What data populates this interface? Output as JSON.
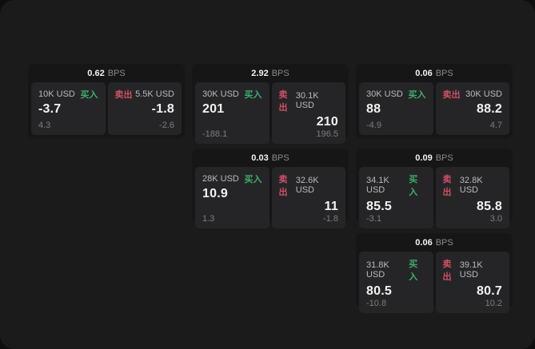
{
  "labels": {
    "bps_unit": "BPS",
    "buy": "买入",
    "sell": "卖出"
  },
  "colors": {
    "page-bg": "#1b1b1c",
    "canvas-bg": "#0e0e0f",
    "card-bg": "#161617",
    "panel-bg": "#252527",
    "buy": "#3fae6e",
    "sell": "#cf5064"
  },
  "cards": [
    {
      "spread": "0.62",
      "buy": {
        "size": "10K USD",
        "price": "-3.7",
        "sub": "4.3"
      },
      "sell": {
        "size": "5.5K USD",
        "price": "-1.8",
        "sub": "-2.6"
      }
    },
    {
      "spread": "2.92",
      "buy": {
        "size": "30K USD",
        "price": "201",
        "sub": "-188.1"
      },
      "sell": {
        "size": "30.1K USD",
        "price": "210",
        "sub": "196.5"
      }
    },
    {
      "spread": "0.06",
      "buy": {
        "size": "30K USD",
        "price": "88",
        "sub": "-4.9"
      },
      "sell": {
        "size": "30K USD",
        "price": "88.2",
        "sub": "4.7"
      }
    },
    {
      "spread": "0.03",
      "buy": {
        "size": "28K USD",
        "price": "10.9",
        "sub": "1.3"
      },
      "sell": {
        "size": "32.6K USD",
        "price": "11",
        "sub": "-1.8"
      }
    },
    {
      "spread": "0.09",
      "buy": {
        "size": "34.1K USD",
        "price": "85.5",
        "sub": "-3.1"
      },
      "sell": {
        "size": "32.8K USD",
        "price": "85.8",
        "sub": "3.0"
      }
    },
    {
      "spread": "0.06",
      "buy": {
        "size": "31.8K USD",
        "price": "80.5",
        "sub": "-10.8"
      },
      "sell": {
        "size": "39.1K USD",
        "price": "80.7",
        "sub": "10.2"
      }
    }
  ]
}
